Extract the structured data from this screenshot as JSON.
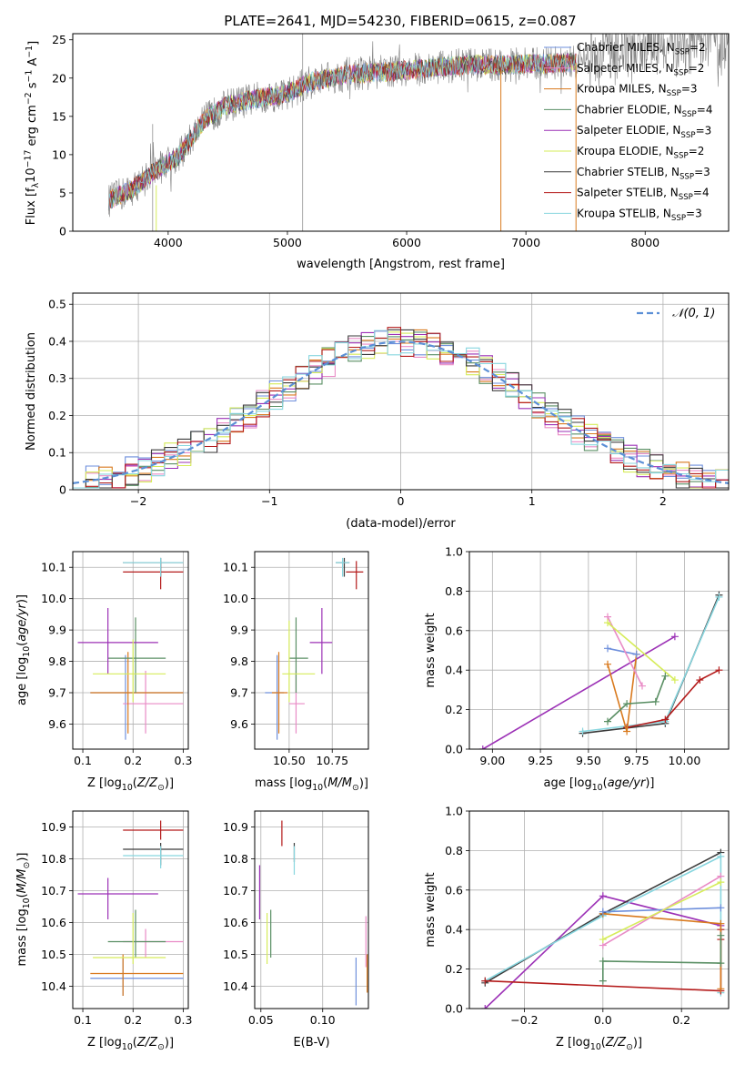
{
  "figure_title": "PLATE=2641, MJD=54230, FIBERID=0615, z=0.087",
  "colors": {
    "Chabrier MILES": "#6e8fdc",
    "Salpeter MILES": "#e98bc6",
    "Kroupa MILES": "#d97a1e",
    "Chabrier ELODIE": "#5a8f64",
    "Salpeter ELODIE": "#9c31b6",
    "Kroupa ELODIE": "#d6ec5a",
    "Chabrier STELIB": "#3b3b3b",
    "Salpeter STELIB": "#b41a1a",
    "Kroupa STELIB": "#88d6df",
    "gaussian": "#5b8fd6"
  },
  "chart_data": [
    {
      "type": "line",
      "id": "spectrum",
      "title": "PLATE=2641, MJD=54230, FIBERID=0615, z=0.087",
      "xlabel": "wavelength [Angstrom, rest frame]",
      "ylabel": "Flux [f_λ 10^-17 erg cm^-2 s^-1 A^-1]",
      "xlim": [
        3200,
        8700
      ],
      "ylim": [
        0,
        25.8
      ],
      "xticks": [
        4000,
        5000,
        6000,
        7000,
        8000
      ],
      "yticks": [
        0,
        5,
        10,
        15,
        20,
        25
      ],
      "grid": false,
      "legend_loc": "upper right",
      "legend": [
        {
          "text": "Chabrier MILES, N",
          "sub": "SSP",
          "tail": "=2",
          "key": "Chabrier MILES"
        },
        {
          "text": "Salpeter MILES, N",
          "sub": "SSP",
          "tail": "=2",
          "key": "Salpeter MILES"
        },
        {
          "text": "Kroupa MILES, N",
          "sub": "SSP",
          "tail": "=3",
          "key": "Kroupa MILES"
        },
        {
          "text": "Chabrier ELODIE, N",
          "sub": "SSP",
          "tail": "=4",
          "key": "Chabrier ELODIE"
        },
        {
          "text": "Salpeter ELODIE, N",
          "sub": "SSP",
          "tail": "=3",
          "key": "Salpeter ELODIE"
        },
        {
          "text": "Kroupa ELODIE, N",
          "sub": "SSP",
          "tail": "=2",
          "key": "Kroupa ELODIE"
        },
        {
          "text": "Chabrier STELIB, N",
          "sub": "SSP",
          "tail": "=3",
          "key": "Chabrier STELIB"
        },
        {
          "text": "Salpeter STELIB, N",
          "sub": "SSP",
          "tail": "=4",
          "key": "Salpeter STELIB"
        },
        {
          "text": "Kroupa STELIB, N",
          "sub": "SSP",
          "tail": "=3",
          "key": "Kroupa STELIB"
        }
      ],
      "continuum_anchors": [
        [
          3500,
          4
        ],
        [
          3700,
          5.5
        ],
        [
          3900,
          8
        ],
        [
          4100,
          10
        ],
        [
          4300,
          14.5
        ],
        [
          4500,
          16.5
        ],
        [
          4800,
          17.5
        ],
        [
          5000,
          18
        ],
        [
          5200,
          19.5
        ],
        [
          5500,
          20.5
        ],
        [
          5800,
          20.8
        ],
        [
          6000,
          21
        ],
        [
          6300,
          21.5
        ],
        [
          6600,
          21.8
        ],
        [
          6800,
          21.7
        ],
        [
          7000,
          21.8
        ],
        [
          7300,
          22
        ],
        [
          7420,
          22
        ],
        [
          7600,
          23
        ],
        [
          8000,
          24
        ],
        [
          8400,
          24.5
        ],
        [
          8700,
          25
        ]
      ],
      "model_range": [
        3500,
        7420
      ]
    },
    {
      "type": "line",
      "id": "residuals",
      "xlabel": "(data-model)/error",
      "ylabel": "Normed distribution",
      "xlim": [
        -2.5,
        2.5
      ],
      "ylim": [
        0,
        0.53
      ],
      "xticks": [
        -2,
        -1,
        0,
        1,
        2
      ],
      "yticks": [
        0.0,
        0.1,
        0.2,
        0.3,
        0.4,
        0.5
      ],
      "grid": true,
      "legend": [
        {
          "text": "𝒩(0, 1)",
          "key": "gaussian",
          "style": "dashed"
        }
      ],
      "legend_loc": "upper right",
      "bin_width": 0.1,
      "notes": "stepped histograms of normalized residuals for each of the nine model fits, closely following a unit Gaussian"
    },
    {
      "type": "scatter",
      "id": "age_vs_Z",
      "xlabel": "Z [log10(Z/Z⊙)]",
      "ylabel": "age  [log10(age/yr)]",
      "xlim": [
        0.08,
        0.31
      ],
      "ylim": [
        9.52,
        10.15
      ],
      "xticks": [
        0.1,
        0.2,
        0.3
      ],
      "yticks": [
        9.6,
        9.7,
        9.8,
        9.9,
        10.0,
        10.1
      ],
      "grid": true,
      "points": [
        {
          "key": "Chabrier MILES",
          "x": 0.185,
          "y": 9.7,
          "xlo": 0.115,
          "xhi": 0.3,
          "ylo": 9.55,
          "yhi": 9.82
        },
        {
          "key": "Salpeter MILES",
          "x": 0.225,
          "y": 9.665,
          "xlo": 0.18,
          "xhi": 0.3,
          "ylo": 9.57,
          "yhi": 9.77
        },
        {
          "key": "Kroupa MILES",
          "x": 0.19,
          "y": 9.7,
          "xlo": 0.115,
          "xhi": 0.3,
          "ylo": 9.57,
          "yhi": 9.83
        },
        {
          "key": "Chabrier ELODIE",
          "x": 0.205,
          "y": 9.81,
          "xlo": 0.15,
          "xhi": 0.265,
          "ylo": 9.7,
          "yhi": 9.94
        },
        {
          "key": "Salpeter ELODIE",
          "x": 0.15,
          "y": 9.86,
          "xlo": 0.09,
          "xhi": 0.25,
          "ylo": 9.76,
          "yhi": 9.97
        },
        {
          "key": "Kroupa ELODIE",
          "x": 0.2,
          "y": 9.76,
          "xlo": 0.12,
          "xhi": 0.265,
          "ylo": 9.67,
          "yhi": 9.87
        },
        {
          "key": "Chabrier STELIB",
          "x": 0.255,
          "y": 10.115,
          "xlo": 0.18,
          "xhi": 0.3,
          "ylo": 10.07,
          "yhi": 10.13
        },
        {
          "key": "Salpeter STELIB",
          "x": 0.255,
          "y": 10.085,
          "xlo": 0.18,
          "xhi": 0.3,
          "ylo": 10.03,
          "yhi": 10.12
        },
        {
          "key": "Kroupa STELIB",
          "x": 0.255,
          "y": 10.115,
          "xlo": 0.18,
          "xhi": 0.3,
          "ylo": 10.07,
          "yhi": 10.13
        }
      ]
    },
    {
      "type": "scatter",
      "id": "age_vs_mass",
      "xlabel": "mass [log10(M/M⊙)]",
      "ylabel": "",
      "xlim": [
        10.3,
        10.96
      ],
      "ylim": [
        9.52,
        10.15
      ],
      "xticks": [
        10.5,
        10.75
      ],
      "xticklabels": [
        "10.50",
        "10.75"
      ],
      "yticks": [
        9.6,
        9.7,
        9.8,
        9.9,
        10.0,
        10.1
      ],
      "grid": true,
      "points": [
        {
          "key": "Chabrier MILES",
          "x": 10.43,
          "y": 9.7,
          "xlo": 10.36,
          "xhi": 10.47,
          "ylo": 9.55,
          "yhi": 9.82
        },
        {
          "key": "Salpeter MILES",
          "x": 10.54,
          "y": 9.665,
          "xlo": 10.5,
          "xhi": 10.59,
          "ylo": 9.57,
          "yhi": 9.77
        },
        {
          "key": "Kroupa MILES",
          "x": 10.44,
          "y": 9.7,
          "xlo": 10.4,
          "xhi": 10.49,
          "ylo": 9.57,
          "yhi": 9.83
        },
        {
          "key": "Chabrier ELODIE",
          "x": 10.54,
          "y": 9.81,
          "xlo": 10.5,
          "xhi": 10.61,
          "ylo": 9.7,
          "yhi": 9.94
        },
        {
          "key": "Salpeter ELODIE",
          "x": 10.69,
          "y": 9.86,
          "xlo": 10.62,
          "xhi": 10.75,
          "ylo": 9.76,
          "yhi": 9.97
        },
        {
          "key": "Kroupa ELODIE",
          "x": 10.5,
          "y": 9.76,
          "xlo": 10.46,
          "xhi": 10.65,
          "ylo": 9.67,
          "yhi": 9.93
        },
        {
          "key": "Chabrier STELIB",
          "x": 10.82,
          "y": 10.115,
          "xlo": 10.77,
          "xhi": 10.85,
          "ylo": 10.07,
          "yhi": 10.13
        },
        {
          "key": "Salpeter STELIB",
          "x": 10.89,
          "y": 10.085,
          "xlo": 10.83,
          "xhi": 10.93,
          "ylo": 10.03,
          "yhi": 10.12
        },
        {
          "key": "Kroupa STELIB",
          "x": 10.81,
          "y": 10.115,
          "xlo": 10.77,
          "xhi": 10.85,
          "ylo": 10.07,
          "yhi": 10.13
        }
      ]
    },
    {
      "type": "line",
      "id": "mass_weight_vs_age",
      "xlabel": "age  [log10(age/yr)]",
      "ylabel": "mass weight",
      "xlim": [
        8.88,
        10.23
      ],
      "ylim": [
        0,
        1.0
      ],
      "xticks": [
        9.0,
        9.25,
        9.5,
        9.75,
        10.0
      ],
      "xticklabels": [
        "9.00",
        "9.25",
        "9.50",
        "9.75",
        "10.00"
      ],
      "yticks": [
        0.0,
        0.2,
        0.4,
        0.6,
        0.8,
        1.0
      ],
      "grid": true,
      "series": [
        {
          "key": "Salpeter ELODIE",
          "points": [
            [
              8.95,
              0.0
            ],
            [
              9.95,
              0.57
            ]
          ]
        },
        {
          "key": "Chabrier STELIB",
          "points": [
            [
              9.47,
              0.08
            ],
            [
              9.9,
              0.13
            ],
            [
              10.18,
              0.78
            ]
          ]
        },
        {
          "key": "Kroupa STELIB",
          "points": [
            [
              9.47,
              0.09
            ],
            [
              9.9,
              0.14
            ],
            [
              10.18,
              0.77
            ]
          ]
        },
        {
          "key": "Salpeter STELIB",
          "points": [
            [
              9.7,
              0.11
            ],
            [
              9.9,
              0.15
            ],
            [
              10.08,
              0.35
            ],
            [
              10.18,
              0.4
            ]
          ]
        },
        {
          "key": "Kroupa MILES",
          "points": [
            [
              9.6,
              0.43
            ],
            [
              9.7,
              0.09
            ],
            [
              9.75,
              0.48
            ]
          ]
        },
        {
          "key": "Chabrier MILES",
          "points": [
            [
              9.6,
              0.51
            ],
            [
              9.75,
              0.48
            ]
          ]
        },
        {
          "key": "Salpeter MILES",
          "points": [
            [
              9.6,
              0.67
            ],
            [
              9.78,
              0.32
            ]
          ]
        },
        {
          "key": "Kroupa ELODIE",
          "points": [
            [
              9.6,
              0.64
            ],
            [
              9.95,
              0.35
            ]
          ]
        },
        {
          "key": "Chabrier ELODIE",
          "points": [
            [
              9.6,
              0.14
            ],
            [
              9.7,
              0.23
            ],
            [
              9.85,
              0.24
            ],
            [
              9.9,
              0.37
            ]
          ]
        }
      ]
    },
    {
      "type": "scatter",
      "id": "mass_vs_Z",
      "xlabel": "Z [log10(Z/Z⊙)]",
      "ylabel": "mass [log10(M/M⊙)]",
      "xlim": [
        0.08,
        0.31
      ],
      "ylim": [
        10.33,
        10.95
      ],
      "xticks": [
        0.1,
        0.2,
        0.3
      ],
      "yticks": [
        10.4,
        10.5,
        10.6,
        10.7,
        10.8,
        10.9
      ],
      "grid": true,
      "points": [
        {
          "key": "Chabrier MILES",
          "x": 0.18,
          "y": 10.425,
          "xlo": 0.115,
          "xhi": 0.3,
          "ylo": 10.37,
          "yhi": 10.49
        },
        {
          "key": "Salpeter MILES",
          "x": 0.225,
          "y": 10.54,
          "xlo": 0.18,
          "xhi": 0.3,
          "ylo": 10.49,
          "yhi": 10.58
        },
        {
          "key": "Kroupa MILES",
          "x": 0.18,
          "y": 10.44,
          "xlo": 0.115,
          "xhi": 0.3,
          "ylo": 10.37,
          "yhi": 10.5
        },
        {
          "key": "Chabrier ELODIE",
          "x": 0.205,
          "y": 10.54,
          "xlo": 0.15,
          "xhi": 0.265,
          "ylo": 10.49,
          "yhi": 10.64
        },
        {
          "key": "Salpeter ELODIE",
          "x": 0.15,
          "y": 10.69,
          "xlo": 0.09,
          "xhi": 0.25,
          "ylo": 10.61,
          "yhi": 10.74
        },
        {
          "key": "Kroupa ELODIE",
          "x": 0.2,
          "y": 10.49,
          "xlo": 0.12,
          "xhi": 0.265,
          "ylo": 10.47,
          "yhi": 10.63
        },
        {
          "key": "Chabrier STELIB",
          "x": 0.255,
          "y": 10.83,
          "xlo": 0.18,
          "xhi": 0.3,
          "ylo": 10.78,
          "yhi": 10.85
        },
        {
          "key": "Salpeter STELIB",
          "x": 0.255,
          "y": 10.89,
          "xlo": 0.18,
          "xhi": 0.3,
          "ylo": 10.86,
          "yhi": 10.92
        },
        {
          "key": "Kroupa STELIB",
          "x": 0.255,
          "y": 10.81,
          "xlo": 0.18,
          "xhi": 0.3,
          "ylo": 10.77,
          "yhi": 10.84
        }
      ]
    },
    {
      "type": "scatter",
      "id": "mass_vs_ebv",
      "xlabel": "E(B-V)",
      "ylabel": "",
      "xlim": [
        0.045,
        0.137
      ],
      "ylim": [
        10.33,
        10.95
      ],
      "xticks": [
        0.05,
        0.1
      ],
      "xticklabels": [
        "0.05",
        "0.10"
      ],
      "yticks": [
        10.4,
        10.5,
        10.6,
        10.7,
        10.8,
        10.9
      ],
      "grid": true,
      "points": [
        {
          "key": "Chabrier MILES",
          "x": 0.127,
          "y": 10.42,
          "ylo": 10.34,
          "yhi": 10.49
        },
        {
          "key": "Salpeter MILES",
          "x": 0.135,
          "y": 10.54,
          "ylo": 10.46,
          "yhi": 10.62
        },
        {
          "key": "Kroupa MILES",
          "x": 0.136,
          "y": 10.44,
          "ylo": 10.38,
          "yhi": 10.5
        },
        {
          "key": "Chabrier ELODIE",
          "x": 0.058,
          "y": 10.54,
          "ylo": 10.49,
          "yhi": 10.64
        },
        {
          "key": "Salpeter ELODIE",
          "x": 0.049,
          "y": 10.69,
          "ylo": 10.61,
          "yhi": 10.78
        },
        {
          "key": "Kroupa ELODIE",
          "x": 0.055,
          "y": 10.52,
          "ylo": 10.47,
          "yhi": 10.63
        },
        {
          "key": "Chabrier STELIB",
          "x": 0.077,
          "y": 10.82,
          "ylo": 10.79,
          "yhi": 10.85
        },
        {
          "key": "Salpeter STELIB",
          "x": 0.067,
          "y": 10.88,
          "ylo": 10.84,
          "yhi": 10.92
        },
        {
          "key": "Kroupa STELIB",
          "x": 0.077,
          "y": 10.8,
          "ylo": 10.75,
          "yhi": 10.84
        }
      ]
    },
    {
      "type": "line",
      "id": "mass_weight_vs_Z",
      "xlabel": "Z [log10(Z/Z⊙)]",
      "ylabel": "mass weight",
      "xlim": [
        -0.34,
        0.32
      ],
      "ylim": [
        0,
        1.0
      ],
      "xticks": [
        -0.2,
        0.0,
        0.2
      ],
      "xticklabels": [
        "−0.2",
        "0.0",
        "0.2"
      ],
      "yticks": [
        0.0,
        0.2,
        0.4,
        0.6,
        0.8,
        1.0
      ],
      "grid": true,
      "series": [
        {
          "key": "Salpeter ELODIE",
          "points": [
            [
              -0.3,
              0.0
            ],
            [
              0.0,
              0.57
            ],
            [
              0.3,
              0.42
            ]
          ]
        },
        {
          "key": "Chabrier STELIB",
          "points": [
            [
              -0.3,
              0.13
            ],
            [
              0.0,
              0.48
            ],
            [
              0.3,
              0.79
            ]
          ]
        },
        {
          "key": "Kroupa STELIB",
          "points": [
            [
              -0.3,
              0.14
            ],
            [
              0.0,
              0.47
            ],
            [
              0.3,
              0.77
            ],
            [
              0.3,
              0.08
            ]
          ]
        },
        {
          "key": "Salpeter STELIB",
          "points": [
            [
              -0.3,
              0.14
            ],
            [
              0.3,
              0.09
            ],
            [
              0.3,
              0.35
            ],
            [
              0.3,
              0.4
            ]
          ]
        },
        {
          "key": "Kroupa MILES",
          "points": [
            [
              0.0,
              0.48
            ],
            [
              0.3,
              0.43
            ],
            [
              0.3,
              0.1
            ]
          ]
        },
        {
          "key": "Chabrier MILES",
          "points": [
            [
              0.0,
              0.49
            ],
            [
              0.3,
              0.51
            ]
          ]
        },
        {
          "key": "Salpeter MILES",
          "points": [
            [
              0.0,
              0.32
            ],
            [
              0.3,
              0.67
            ]
          ]
        },
        {
          "key": "Kroupa ELODIE",
          "points": [
            [
              0.0,
              0.35
            ],
            [
              0.3,
              0.64
            ]
          ]
        },
        {
          "key": "Chabrier ELODIE",
          "points": [
            [
              0.0,
              0.14
            ],
            [
              0.0,
              0.24
            ],
            [
              0.3,
              0.23
            ],
            [
              0.3,
              0.37
            ]
          ]
        }
      ]
    }
  ]
}
